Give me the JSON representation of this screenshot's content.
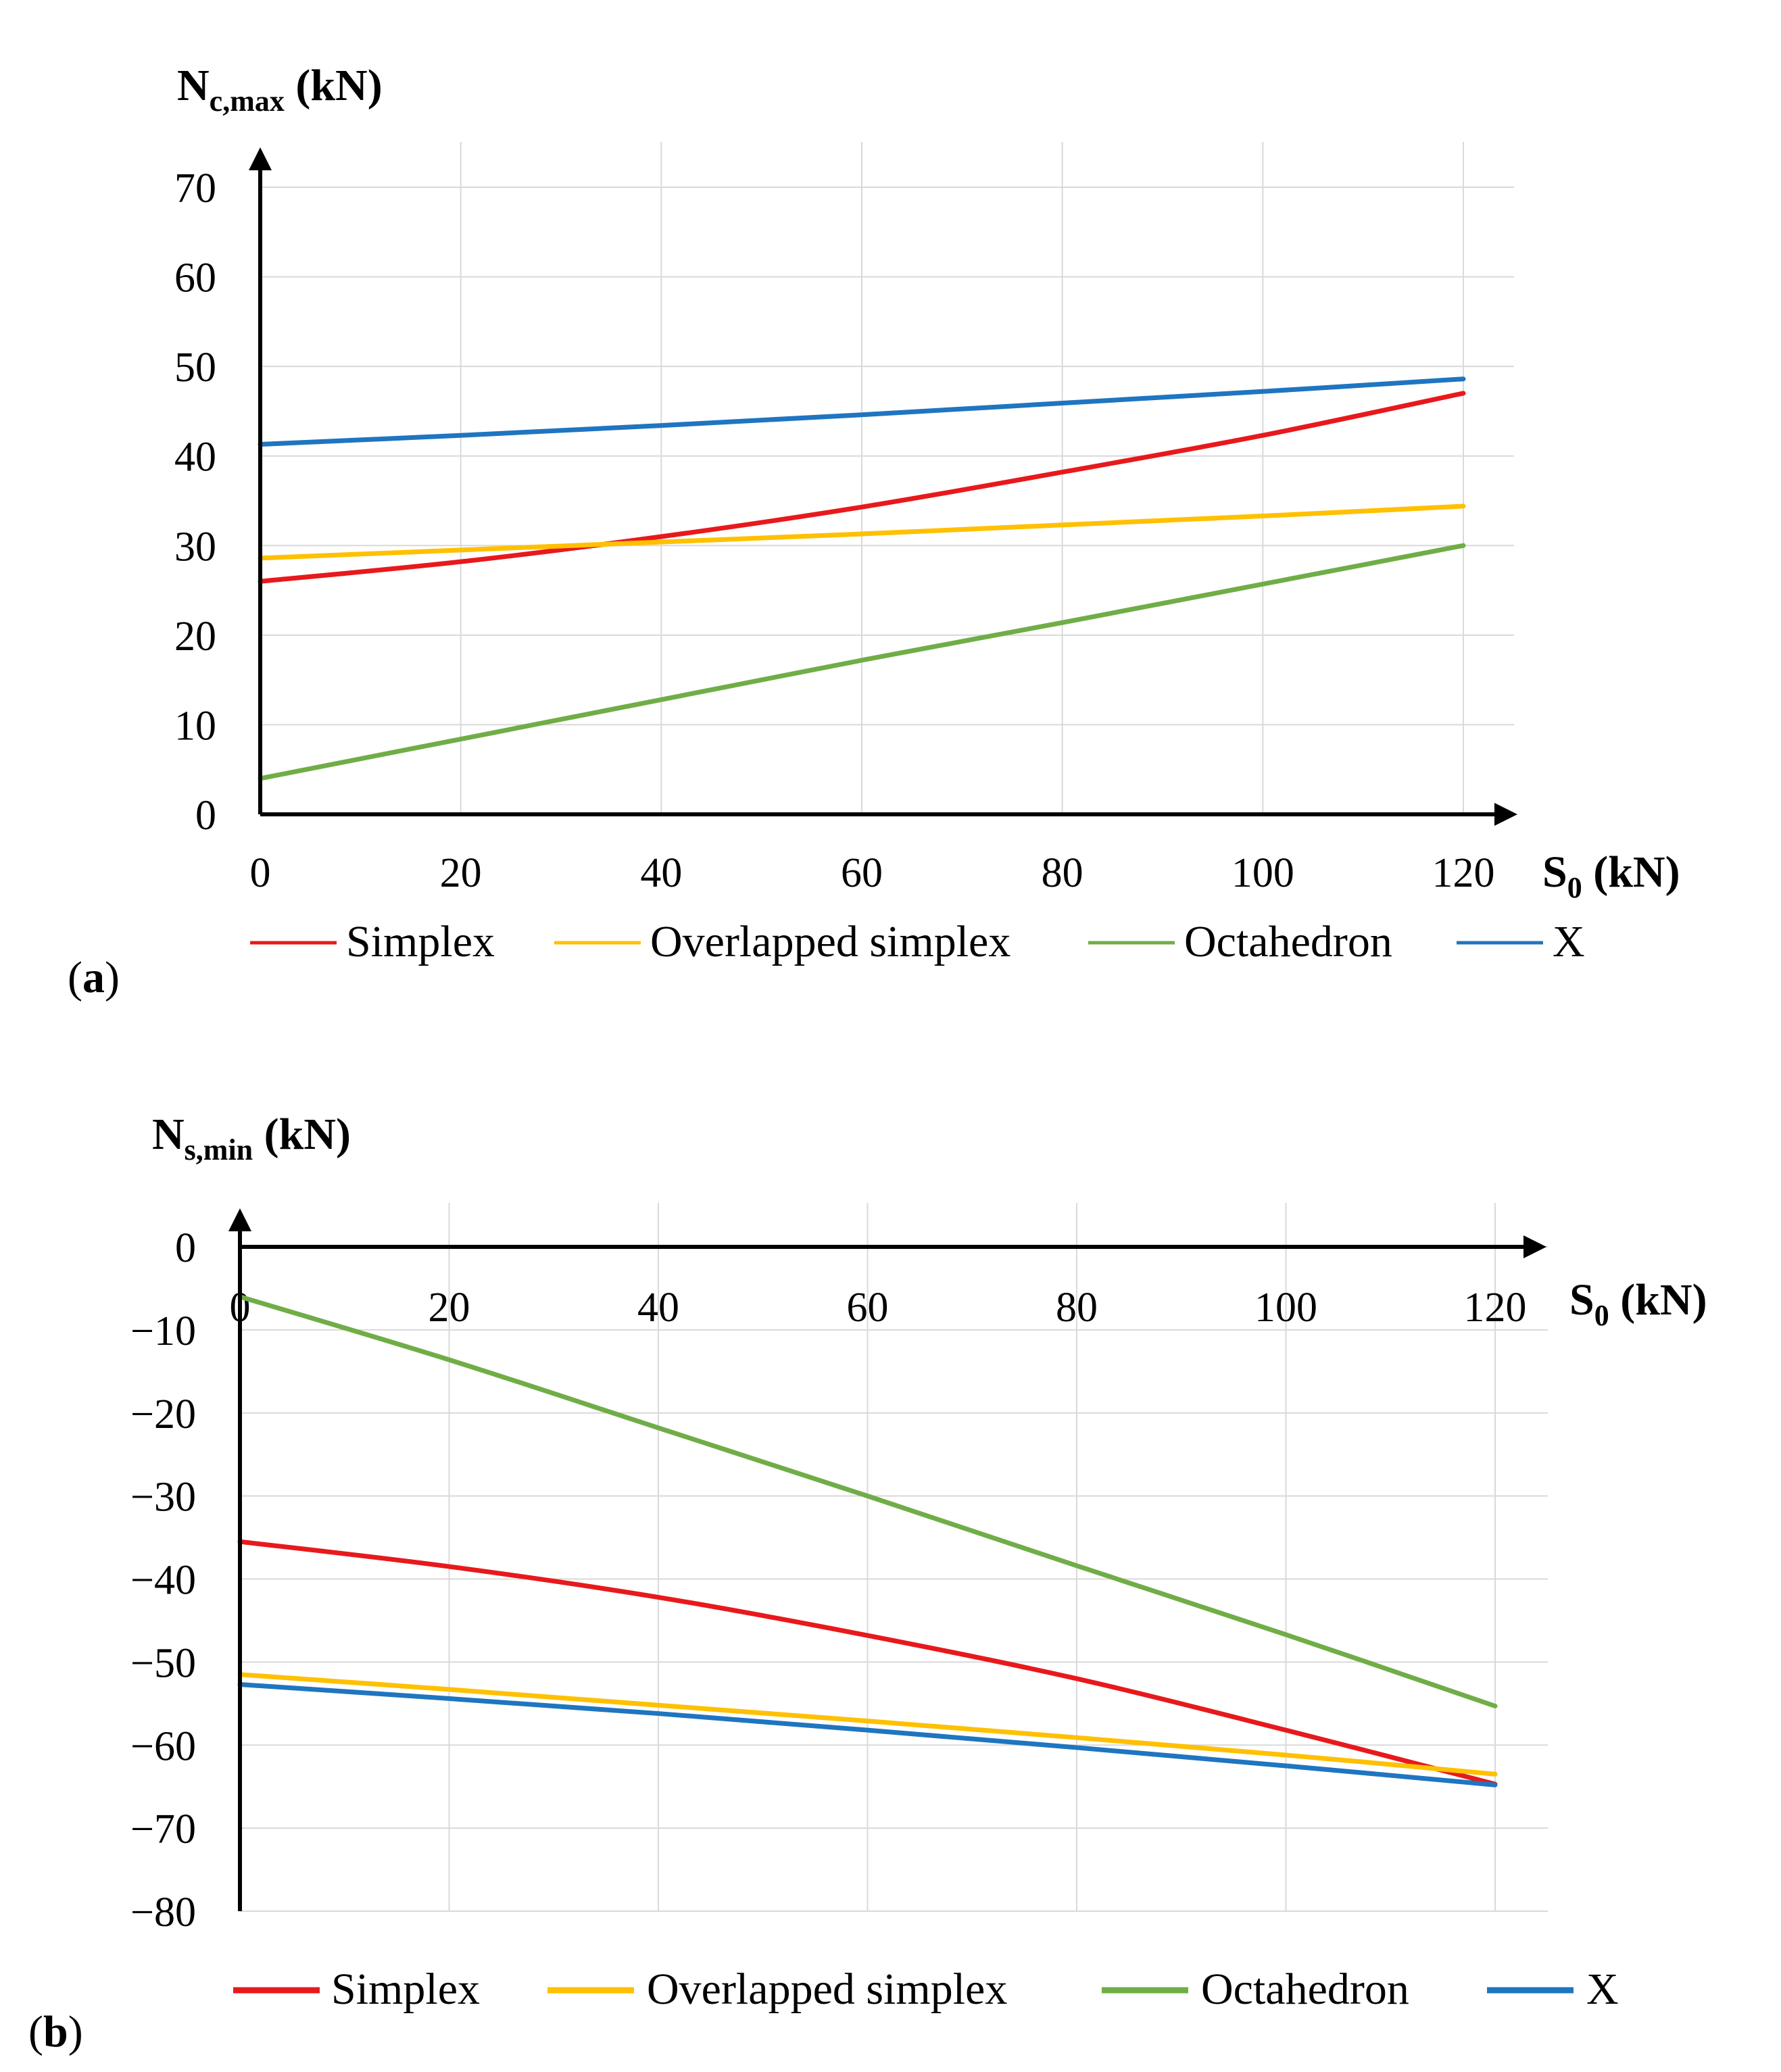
{
  "colors": {
    "Simplex": "#e8191c",
    "Overlapped simplex": "#ffc000",
    "Octahedron": "#70ad47",
    "X": "#1f75c0"
  },
  "chart_data": [
    {
      "panel": "(a)",
      "panel_letter": "a",
      "type": "line",
      "ylabel_main": "N",
      "ylabel_sub": "c,max",
      "ylabel_unit": " (kN)",
      "xlabel_main": "S",
      "xlabel_sub": "0",
      "xlabel_unit": " (kN)",
      "xlim": [
        0,
        120
      ],
      "ylim": [
        0,
        70
      ],
      "xticks": [
        0,
        20,
        40,
        60,
        80,
        100,
        120
      ],
      "yticks": [
        0,
        10,
        20,
        30,
        40,
        50,
        60,
        70
      ],
      "grid": true,
      "legend_position": "bottom",
      "x": [
        0,
        20,
        40,
        60,
        80,
        100,
        120
      ],
      "series": [
        {
          "name": "Simplex",
          "values": [
            26,
            28.2,
            31,
            34.3,
            38.2,
            42.3,
            47
          ]
        },
        {
          "name": "Overlapped simplex",
          "values": [
            28.6,
            29.5,
            30.4,
            31.3,
            32.3,
            33.3,
            34.4
          ]
        },
        {
          "name": "Octahedron",
          "values": [
            4,
            8.4,
            12.8,
            17.2,
            21.4,
            25.7,
            30
          ]
        },
        {
          "name": "X",
          "values": [
            41.3,
            42.3,
            43.4,
            44.6,
            45.9,
            47.2,
            48.6
          ]
        }
      ]
    },
    {
      "panel": "(b)",
      "panel_letter": "b",
      "type": "line",
      "ylabel_main": "N",
      "ylabel_sub": "s,min",
      "ylabel_unit": " (kN)",
      "xlabel_main": "S",
      "xlabel_sub": "0",
      "xlabel_unit": " (kN)",
      "xlim": [
        0,
        120
      ],
      "ylim": [
        -80,
        0
      ],
      "xticks": [
        0,
        20,
        40,
        60,
        80,
        100,
        120
      ],
      "yticks": [
        0,
        -10,
        -20,
        -30,
        -40,
        -50,
        -60,
        -70,
        -80
      ],
      "grid": true,
      "legend_position": "bottom",
      "x": [
        0,
        20,
        40,
        60,
        80,
        100,
        120
      ],
      "series": [
        {
          "name": "Simplex",
          "values": [
            -35.5,
            -38.5,
            -42.2,
            -46.8,
            -52,
            -58.2,
            -64.7
          ]
        },
        {
          "name": "Overlapped simplex",
          "values": [
            -51.5,
            -53.3,
            -55.2,
            -57.1,
            -59.1,
            -61.2,
            -63.5
          ]
        },
        {
          "name": "Octahedron",
          "values": [
            -6,
            -13.6,
            -21.8,
            -30,
            -38.4,
            -46.7,
            -55.3
          ]
        },
        {
          "name": "X",
          "values": [
            -52.7,
            -54.4,
            -56.2,
            -58.2,
            -60.3,
            -62.5,
            -64.8
          ]
        }
      ]
    }
  ]
}
